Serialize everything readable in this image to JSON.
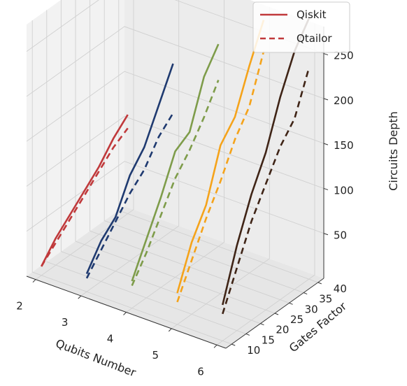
{
  "chart_data": {
    "type": "line",
    "projection": "3d",
    "xlabel": "Qubits Number",
    "ylabel": "Gates Factor",
    "zlabel": "Circuits Depth",
    "x_ticks": [
      "2",
      "3",
      "4",
      "5",
      "6"
    ],
    "y_ticks": [
      "10",
      "15",
      "20",
      "25",
      "30",
      "35",
      "40"
    ],
    "z_ticks": [
      "50",
      "100",
      "150",
      "200",
      "250"
    ],
    "xlim": [
      1.8,
      6.2
    ],
    "ylim": [
      8,
      42
    ],
    "zlim": [
      0,
      280
    ],
    "grid": true,
    "legend_position": "top-right",
    "legend": [
      {
        "label": "Qiskit",
        "style": "solid",
        "color": "#c0393b"
      },
      {
        "label": "Qtailor",
        "style": "dashed",
        "color": "#c0393b"
      }
    ],
    "gates_factor": [
      10,
      15,
      20,
      25,
      30,
      35,
      40
    ],
    "series": [
      {
        "qubits": 2,
        "color": "#c0393b",
        "qiskit": [
          10,
          30,
          45,
          60,
          75,
          95,
          110
        ],
        "qtailor": [
          10,
          25,
          40,
          55,
          70,
          85,
          95
        ]
      },
      {
        "qubits": 3,
        "color": "#1f3a70",
        "qiskit": [
          20,
          45,
          60,
          95,
          115,
          150,
          185
        ],
        "qtailor": [
          15,
          35,
          55,
          75,
          90,
          115,
          130
        ]
      },
      {
        "qubits": 4,
        "color": "#7e9c4a",
        "qiskit": [
          30,
          65,
          100,
          140,
          150,
          200,
          225
        ],
        "qtailor": [
          25,
          50,
          80,
          110,
          130,
          155,
          185
        ]
      },
      {
        "qubits": 5,
        "color": "#f5a31a",
        "qiskit": [
          35,
          80,
          110,
          165,
          185,
          230,
          270
        ],
        "qtailor": [
          25,
          60,
          95,
          125,
          160,
          185,
          235
        ]
      },
      {
        "qubits": 6,
        "color": "#3f2416",
        "qiskit": [
          40,
          95,
          140,
          175,
          225,
          265,
          290
        ],
        "qtailor": [
          30,
          70,
          110,
          140,
          170,
          190,
          235
        ]
      }
    ]
  }
}
